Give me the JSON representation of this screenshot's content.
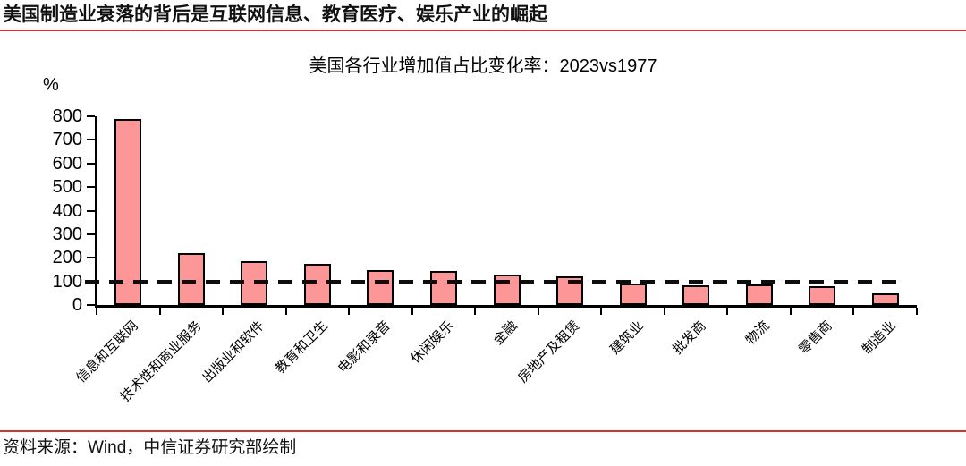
{
  "page": {
    "title": "美国制造业衰落的背后是互联网信息、教育医疗、娱乐产业的崛起",
    "source_note": "资料来源：Wind，中信证券研究部绘制",
    "accent_color": "#cf3531"
  },
  "chart_data": {
    "type": "bar",
    "title": "美国各行业增加值占比变化率：2023vs1977",
    "unit_label": "%",
    "categories": [
      "信息和互联网",
      "技术性和商业服务",
      "出版业和软件",
      "教育和卫生",
      "电影和录音",
      "休闲娱乐",
      "金融",
      "房地产及租赁",
      "建筑业",
      "批发商",
      "物流",
      "零售商",
      "制造业"
    ],
    "values": [
      790,
      220,
      185,
      175,
      148,
      143,
      130,
      122,
      92,
      85,
      86,
      78,
      48
    ],
    "reference_line": 100,
    "ylim": [
      0,
      800
    ],
    "ytick_step": 100,
    "xlabel": "",
    "ylabel": "%",
    "bar_color": "#fc9697",
    "bar_border_color": "#000000",
    "axis_color": "#000000",
    "grid": false,
    "legend": false
  }
}
